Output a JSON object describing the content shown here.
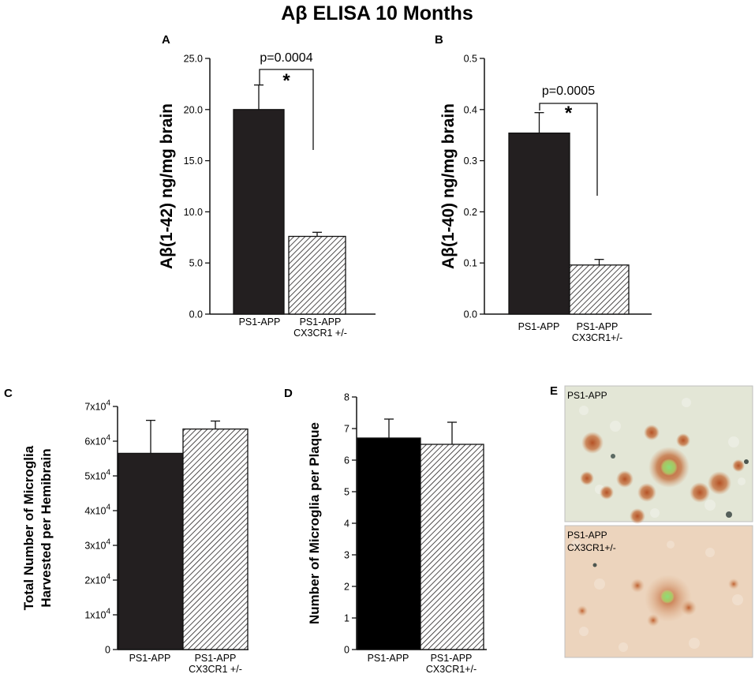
{
  "figure_title": "Aβ ELISA 10 Months",
  "colors": {
    "dark_bar": "#231f20",
    "black_bar": "#000000",
    "hatch": "#231f20"
  },
  "chart_data": [
    {
      "panel": "A",
      "type": "bar",
      "categories": [
        "PS1-APP",
        "PS1-APP CX3CR1 +/-"
      ],
      "category_lines": [
        [
          "PS1-APP"
        ],
        [
          "PS1-APP",
          "CX3CR1 +/-"
        ]
      ],
      "values": [
        20.0,
        7.6
      ],
      "errors": [
        2.4,
        0.4
      ],
      "fills": [
        "solid",
        "hatch"
      ],
      "ylabel": "Aβ(1-42)  ng/mg brain",
      "ylim": [
        0,
        25
      ],
      "yticks": [
        0,
        5,
        10,
        15,
        20,
        25
      ],
      "ytick_labels": [
        "0.0",
        "5.0",
        "10.0",
        "15.0",
        "20.0",
        "25.0"
      ],
      "annotation": {
        "p_text": "p=0.0004",
        "star": "*"
      }
    },
    {
      "panel": "B",
      "type": "bar",
      "categories": [
        "PS1-APP",
        "PS1-APP CX3CR1+/-"
      ],
      "category_lines": [
        [
          "PS1-APP"
        ],
        [
          "PS1-APP",
          "CX3CR1+/-"
        ]
      ],
      "values": [
        0.354,
        0.096
      ],
      "errors": [
        0.04,
        0.011
      ],
      "fills": [
        "solid",
        "hatch"
      ],
      "ylabel": "Aβ(1-40)  ng/mg brain",
      "ylim": [
        0,
        0.5
      ],
      "yticks": [
        0,
        0.1,
        0.2,
        0.3,
        0.4,
        0.5
      ],
      "ytick_labels": [
        "0.0",
        "0.1",
        "0.2",
        "0.3",
        "0.4",
        "0.5"
      ],
      "annotation": {
        "p_text": "p=0.0005",
        "star": "*"
      }
    },
    {
      "panel": "C",
      "type": "bar",
      "categories": [
        "PS1-APP",
        "PS1-APP CX3CR1 +/-"
      ],
      "category_lines": [
        [
          "PS1-APP"
        ],
        [
          "PS1-APP",
          "CX3CR1 +/-"
        ]
      ],
      "values": [
        56500,
        63500
      ],
      "errors": [
        9500,
        2300
      ],
      "fills": [
        "solid",
        "hatch"
      ],
      "ylabel_lines": [
        "Total Number of Microglia",
        "Harvested per Hemibrain"
      ],
      "ylim": [
        0,
        70000
      ],
      "yticks": [
        0,
        10000,
        20000,
        30000,
        40000,
        50000,
        60000,
        70000
      ],
      "ytick_labels": [
        {
          "mant": "0",
          "exp": ""
        },
        {
          "mant": "1x10",
          "exp": "4"
        },
        {
          "mant": "2x10",
          "exp": "4"
        },
        {
          "mant": "3x10",
          "exp": "4"
        },
        {
          "mant": "4x10",
          "exp": "4"
        },
        {
          "mant": "5x10",
          "exp": "4"
        },
        {
          "mant": "6x10",
          "exp": "4"
        },
        {
          "mant": "7x10",
          "exp": "4"
        }
      ]
    },
    {
      "panel": "D",
      "type": "bar",
      "categories": [
        "PS1-APP",
        "PS1-APP CX3CR1+/-"
      ],
      "category_lines": [
        [
          "PS1-APP"
        ],
        [
          "PS1-APP",
          "CX3CR1+/-"
        ]
      ],
      "values": [
        6.7,
        6.5
      ],
      "errors": [
        0.6,
        0.7
      ],
      "fills": [
        "black",
        "hatch"
      ],
      "ylabel": "Number of Microglia per Plaque",
      "ylim": [
        0,
        8
      ],
      "yticks": [
        0,
        1,
        2,
        3,
        4,
        5,
        6,
        7,
        8
      ],
      "ytick_labels": [
        "0",
        "1",
        "2",
        "3",
        "4",
        "5",
        "6",
        "7",
        "8"
      ]
    }
  ],
  "panel_e": {
    "panel": "E",
    "top_label": "PS1-APP",
    "bottom_label_lines": [
      "PS1-APP",
      "CX3CR1+/-"
    ]
  }
}
